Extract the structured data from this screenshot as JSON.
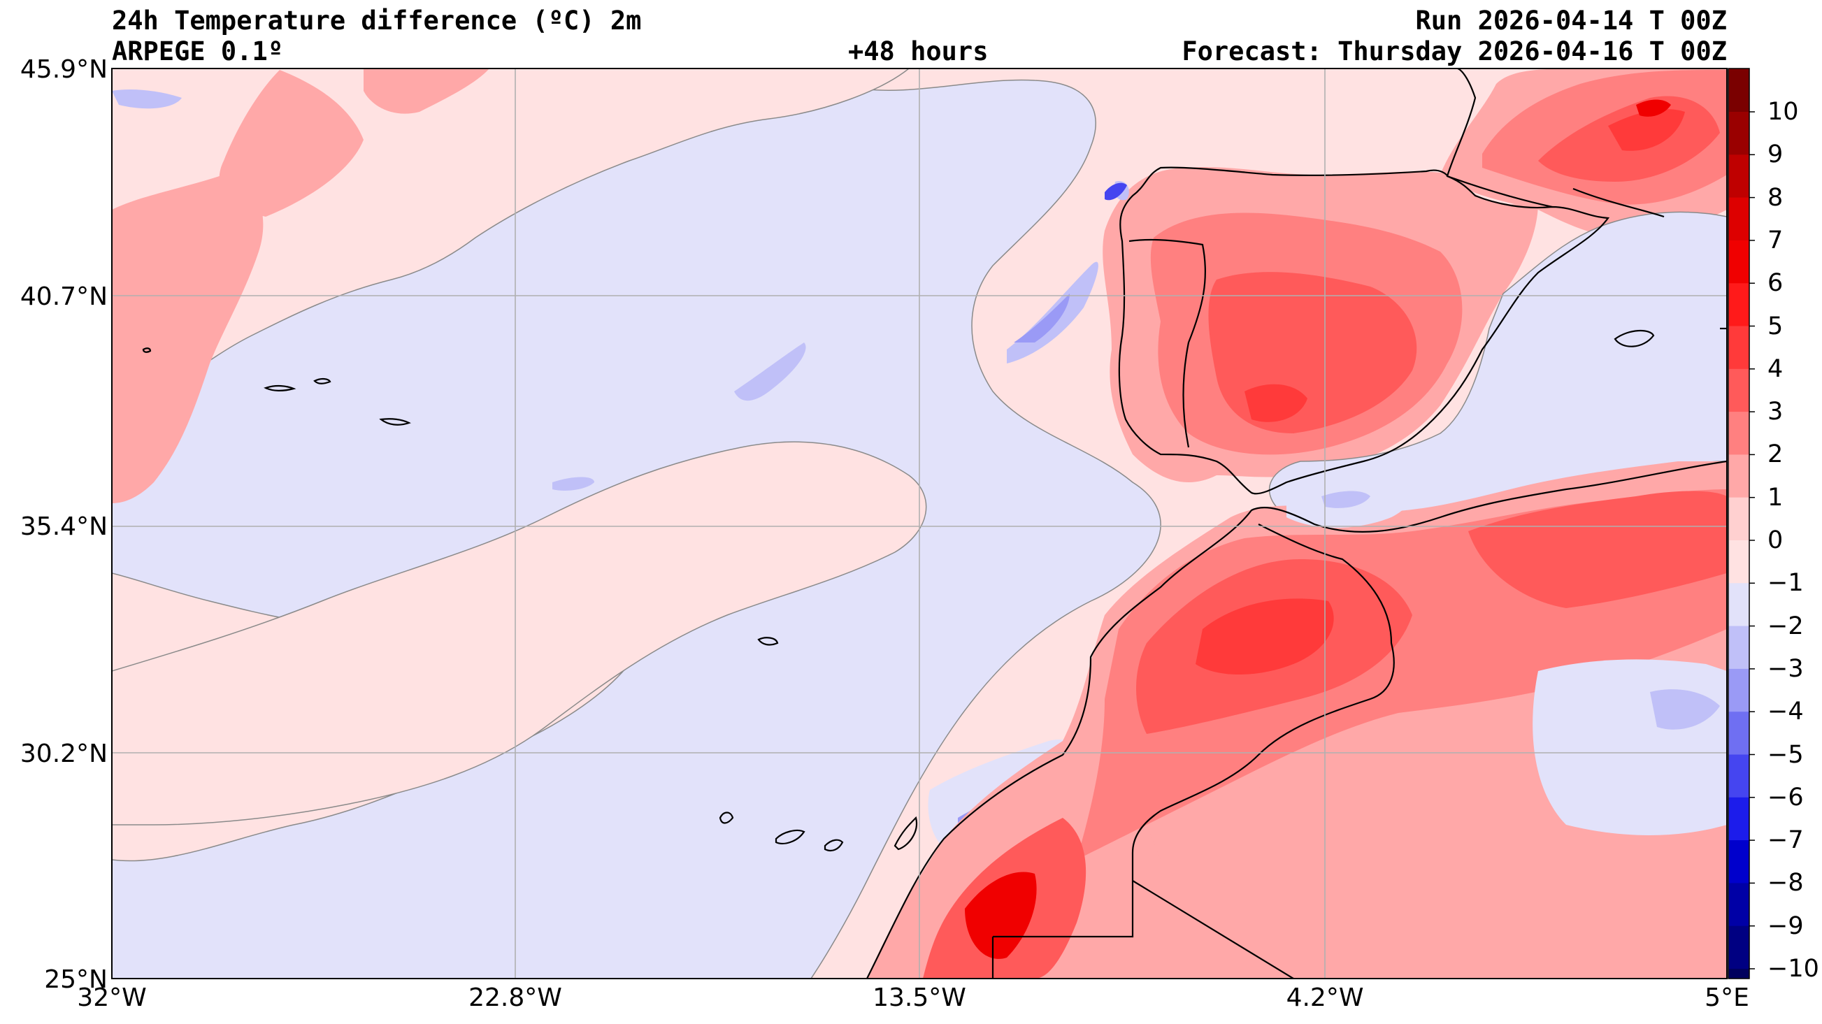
{
  "header": {
    "title": "24h Temperature difference (ºC) 2m",
    "model": "ARPEGE 0.1º",
    "lead": "+48 hours",
    "run": "Run 2026-04-14 T 00Z",
    "forecast": "Forecast: Thursday 2026-04-16 T 00Z"
  },
  "axes": {
    "lat_labels": [
      "45.9°N",
      "40.7°N",
      "35.4°N",
      "30.2°N",
      "25°N"
    ],
    "lon_labels": [
      "32°W",
      "22.8°W",
      "13.5°W",
      "4.2°W",
      "5°E"
    ]
  },
  "colorbar": {
    "levels": [
      10,
      9,
      8,
      7,
      6,
      5,
      4,
      3,
      2,
      1,
      0,
      -1,
      -2,
      -3,
      -4,
      -5,
      -6,
      -7,
      -8,
      -9,
      -10
    ],
    "labels": [
      "10",
      "9",
      "8",
      "7",
      "6",
      "5",
      "4",
      "3",
      "2",
      "1",
      "0",
      "−1",
      "−2",
      "−3",
      "−4",
      "−5",
      "−6",
      "−7",
      "−8",
      "−9",
      "−10"
    ],
    "colors_top_to_bottom": [
      "#7a0000",
      "#9a0000",
      "#bf0000",
      "#dd0000",
      "#f00000",
      "#ff1a1a",
      "#ff3a3a",
      "#ff5a5a",
      "#ff8080",
      "#ffa8a8",
      "#ffd0d0",
      "#ffe2e2",
      "#e2e2fa",
      "#c0c0f8",
      "#9a9af6",
      "#6f6ff2",
      "#4545f0",
      "#1c1ceb",
      "#0000cc",
      "#0000a6",
      "#000082",
      "#00005e",
      "#000040"
    ]
  },
  "colors": {
    "pos_light": "#ffe2e2",
    "pos_1": "#ffa8a8",
    "pos_2": "#ff8080",
    "pos_3": "#ff5a5a",
    "pos_4": "#ff3a3a",
    "pos_5": "#f00000",
    "neg_light": "#e2e2fa",
    "neg_1": "#c0c0f8",
    "neg_2": "#9a9af6",
    "neg_3": "#6f6ff2",
    "neg_4": "#4545f0",
    "grid": "#b0b0b0",
    "coast": "#000000"
  }
}
